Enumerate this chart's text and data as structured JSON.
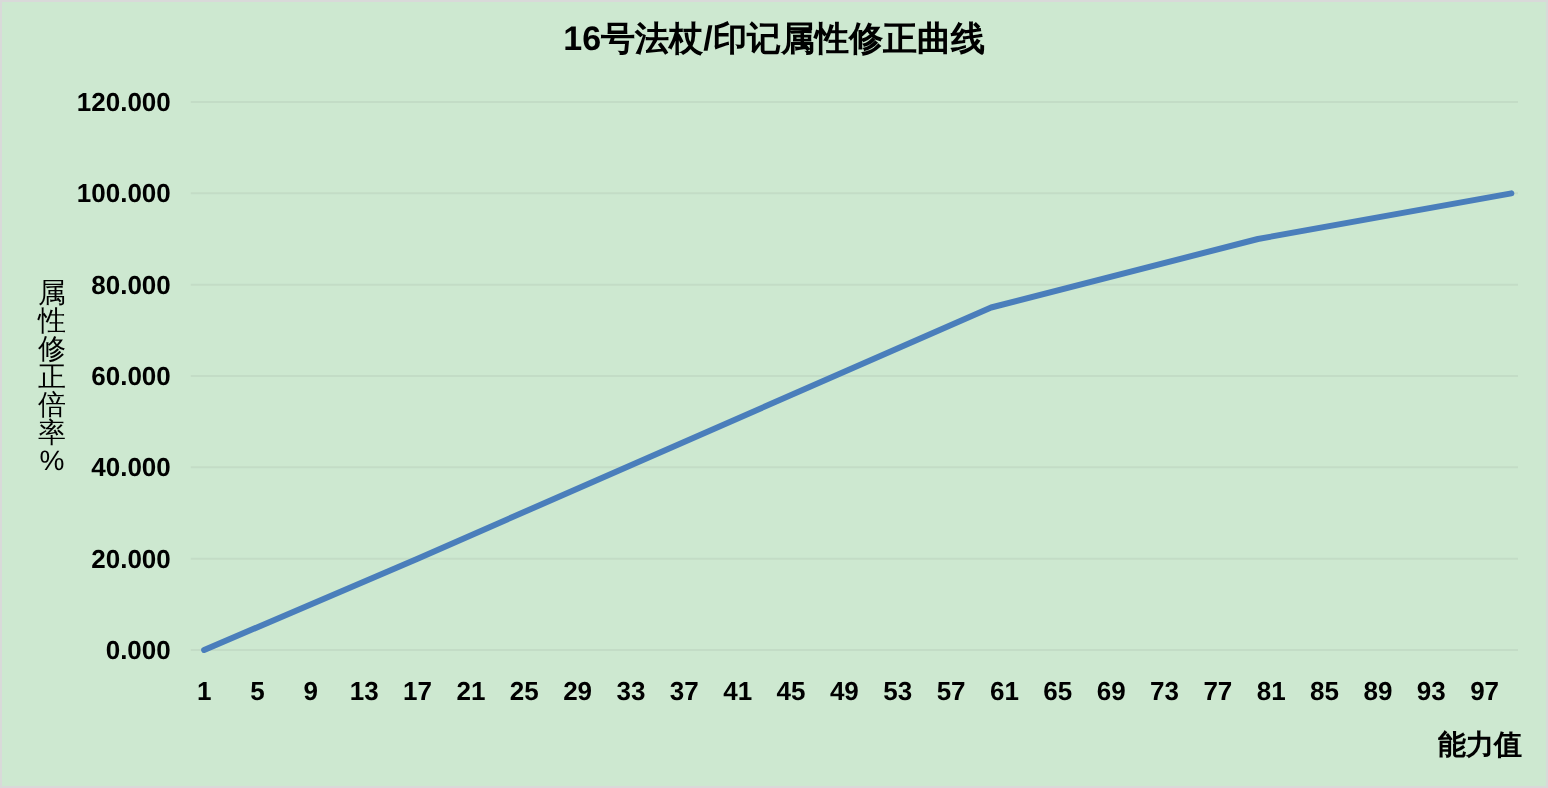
{
  "chart_data": {
    "type": "line",
    "title": "16号法杖/印记属性修正曲线",
    "xlabel": "能力值",
    "ylabel": "属性修正倍率%",
    "x": [
      1,
      17,
      60,
      80,
      99
    ],
    "series": [
      {
        "color": "#4a7ebb",
        "values": [
          0,
          20,
          75,
          90,
          100
        ]
      }
    ],
    "xlim": [
      0,
      99.5
    ],
    "xticks": [
      1,
      5,
      9,
      13,
      17,
      21,
      25,
      29,
      33,
      37,
      41,
      45,
      49,
      53,
      57,
      61,
      65,
      69,
      73,
      77,
      81,
      85,
      89,
      93,
      97
    ],
    "ylim": [
      0,
      120
    ],
    "yticks": [
      {
        "value": 0,
        "label": "0.000"
      },
      {
        "value": 20,
        "label": "20.000"
      },
      {
        "value": 40,
        "label": "40.000"
      },
      {
        "value": 60,
        "label": "60.000"
      },
      {
        "value": 80,
        "label": "80.000"
      },
      {
        "value": 100,
        "label": "100.000"
      },
      {
        "value": 120,
        "label": "120.000"
      }
    ],
    "grid": "y",
    "marker": "none",
    "line_style": "solid"
  }
}
